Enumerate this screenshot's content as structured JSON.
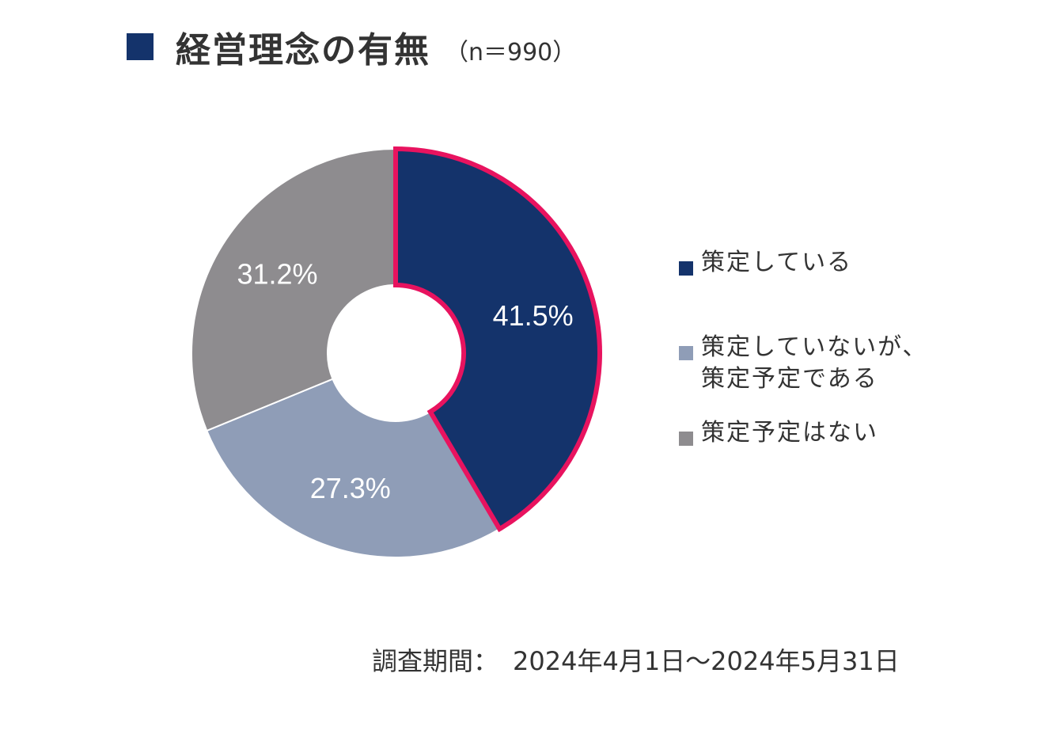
{
  "title": {
    "text": "経営理念の有無",
    "note": "（n＝990）",
    "marker_color": "#14336b"
  },
  "chart_data": {
    "type": "pie",
    "title": "経営理念の有無",
    "subtitle": "（n＝990）",
    "categories": [
      "策定している",
      "策定していないが、策定予定である",
      "策定予定はない"
    ],
    "values": [
      41.5,
      27.3,
      31.2
    ],
    "value_labels": [
      "41.5%",
      "27.3%",
      "31.2%"
    ],
    "colors": [
      "#14336b",
      "#8f9db7",
      "#8e8c8f"
    ],
    "highlight_color": "#e8135f",
    "highlighted_index": 0,
    "donut": true,
    "legend_position": "right"
  },
  "legend": {
    "items": [
      {
        "lines": [
          "策定している"
        ],
        "color": "#14336b"
      },
      {
        "lines": [
          "策定していないが、",
          "策定予定である"
        ],
        "color": "#8f9db7"
      },
      {
        "lines": [
          "策定予定はない"
        ],
        "color": "#8e8c8f"
      }
    ]
  },
  "footer": {
    "label": "調査期間：",
    "period": "2024年4月1日～2024年5月31日"
  }
}
